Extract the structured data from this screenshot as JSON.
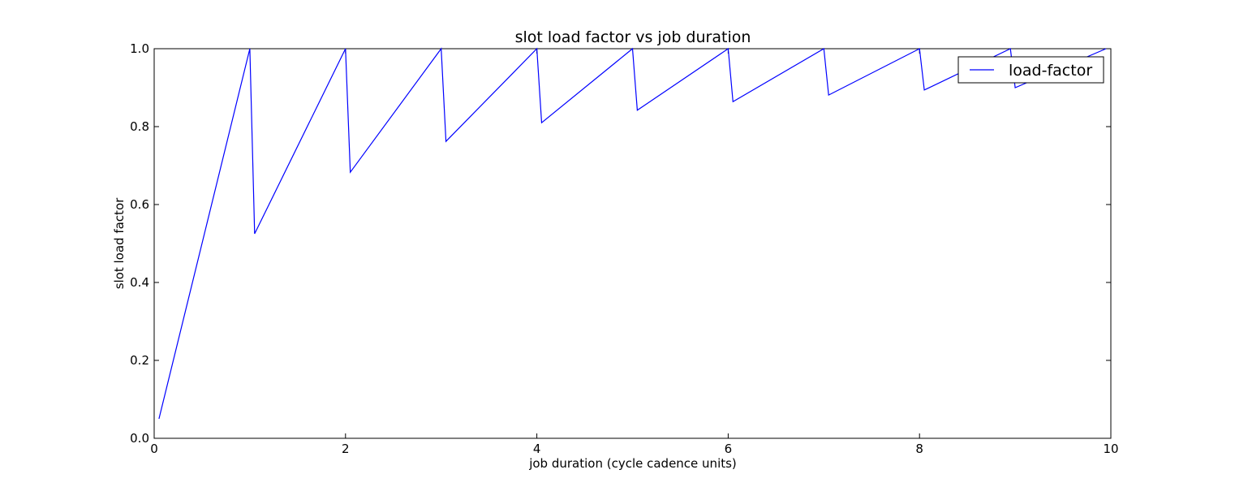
{
  "chart_data": {
    "type": "line",
    "title": "slot load factor vs job duration",
    "xlabel": "job duration (cycle cadence units)",
    "ylabel": "slot load factor",
    "xlim": [
      0,
      10
    ],
    "ylim": [
      0,
      1.0
    ],
    "xticks": [
      0,
      2,
      4,
      6,
      8,
      10
    ],
    "xtick_labels": [
      "0",
      "2",
      "4",
      "6",
      "8",
      "10"
    ],
    "yticks": [
      0,
      0.2,
      0.4,
      0.6,
      0.8,
      1.0
    ],
    "ytick_labels": [
      "0.0",
      "0.2",
      "0.4",
      "0.6",
      "0.8",
      "1.0"
    ],
    "grid": false,
    "legend_position": "top-right",
    "series": [
      {
        "name": "load-factor",
        "color": "#0000ff",
        "x": [
          0.05,
          1.0,
          1.05,
          2.0,
          2.05,
          3.0,
          3.05,
          4.0,
          4.05,
          5.0,
          5.05,
          6.0,
          6.05,
          7.0,
          7.05,
          8.0,
          8.05,
          8.95,
          9.0,
          9.95
        ],
        "y": [
          0.05,
          1.0,
          0.525,
          1.0,
          0.683,
          1.0,
          0.762,
          1.0,
          0.81,
          1.0,
          0.842,
          1.0,
          0.864,
          1.0,
          0.881,
          1.0,
          0.894,
          1.0,
          0.9,
          1.0
        ]
      }
    ]
  }
}
